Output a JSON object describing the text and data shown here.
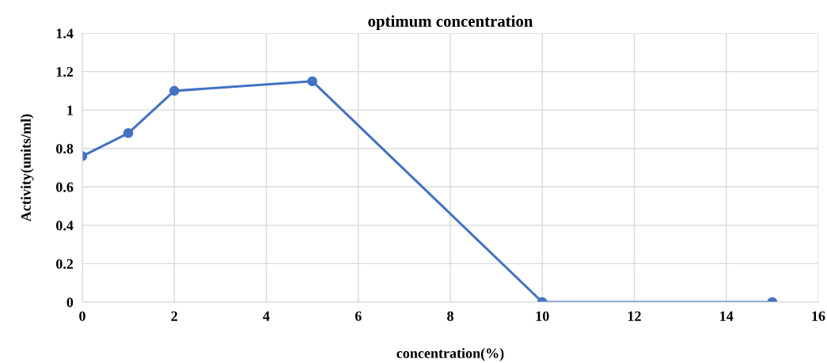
{
  "chart_data": {
    "type": "line",
    "title": "optimum concentration",
    "xlabel": "concentration(%)",
    "ylabel": "Activity(units/ml)",
    "x": [
      0,
      1,
      2,
      5,
      10,
      15
    ],
    "series": [
      {
        "color": "#4472c4",
        "values": [
          0.76,
          0.88,
          1.1,
          1.15,
          0,
          0
        ]
      }
    ],
    "xlim": [
      0,
      16
    ],
    "xticks": [
      0,
      2,
      4,
      6,
      8,
      10,
      12,
      14,
      16
    ],
    "ylim": [
      0,
      1.4
    ],
    "yticks": [
      0,
      {
        "value": 0.2,
        "label": "0.2"
      },
      {
        "value": 0.4,
        "label": "0.4"
      },
      {
        "value": 0.6,
        "label": "0.6"
      },
      {
        "value": 0.8,
        "label": "0.8"
      },
      1,
      {
        "value": 1.2,
        "label": "1.2"
      },
      {
        "value": 1.4,
        "label": "1.4"
      }
    ],
    "grid": true,
    "marker": "circle",
    "line_style": "solid"
  }
}
